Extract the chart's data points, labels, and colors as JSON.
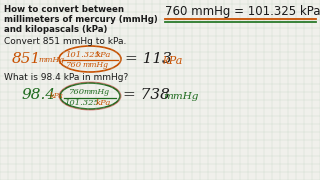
{
  "bg_color": "#f0f0eb",
  "title_line1": "How to convert between",
  "title_line2": "millimeters of mercury (mmHg)",
  "title_line3": "and kilopascals (kPa)",
  "conversion_eq": "760 mmHg = 101.325 kPa",
  "problem1_text": "Convert 851 mmHg to kPa.",
  "problem2_text": "What is 98.4 kPa in mmHg?",
  "color_black": "#1a1a1a",
  "color_orange": "#c85000",
  "color_green": "#1e6b1e",
  "color_red": "#cc2222",
  "color_underline_green": "#2a7a2a",
  "color_grid": "#b8ccb8",
  "title_fs": 6.2,
  "body_fs": 6.5,
  "conv_fs": 8.5,
  "hand_large_fs": 11,
  "hand_small_fs": 6.0,
  "result_fs": 11
}
